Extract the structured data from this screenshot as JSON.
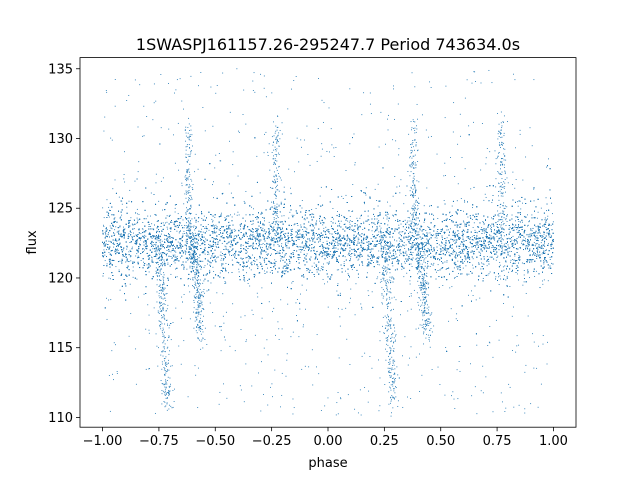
{
  "chart_data": {
    "type": "scatter",
    "title": "1SWASPJ161157.26-295247.7 Period 743634.0s",
    "xlabel": "phase",
    "ylabel": "flux",
    "xlim": [
      -1.1,
      1.1
    ],
    "ylim": [
      109.3,
      135.8
    ],
    "xticks": [
      -1.0,
      -0.75,
      -0.5,
      -0.25,
      0.0,
      0.25,
      0.5,
      0.75,
      1.0
    ],
    "xtick_labels": [
      "−1.00",
      "−0.75",
      "−0.50",
      "−0.25",
      "0.00",
      "0.25",
      "0.50",
      "0.75",
      "1.00"
    ],
    "yticks": [
      110,
      115,
      120,
      125,
      130,
      135
    ],
    "ytick_labels": [
      "110",
      "115",
      "120",
      "125",
      "130",
      "135"
    ],
    "grid": false,
    "marker_color": "#1f77b4",
    "series": [
      {
        "x_range": [
          -1.0,
          1.0
        ],
        "baseline_flux": 122.5,
        "scatter_sigma": 1.6,
        "upper_band": [
          120.8,
          124.6
        ],
        "dips": [
          {
            "phase": -0.73,
            "min_flux": 111.0
          },
          {
            "phase": 0.27,
            "min_flux": 111.0
          },
          {
            "phase": -0.58,
            "min_flux": 116.0
          },
          {
            "phase": 0.42,
            "min_flux": 116.0
          }
        ],
        "spikes": [
          {
            "phase": -0.62,
            "max_flux": 131.0
          },
          {
            "phase": -0.23,
            "max_flux": 131.0
          },
          {
            "phase": 0.38,
            "max_flux": 131.0
          },
          {
            "phase": 0.77,
            "max_flux": 131.0
          }
        ]
      }
    ]
  }
}
